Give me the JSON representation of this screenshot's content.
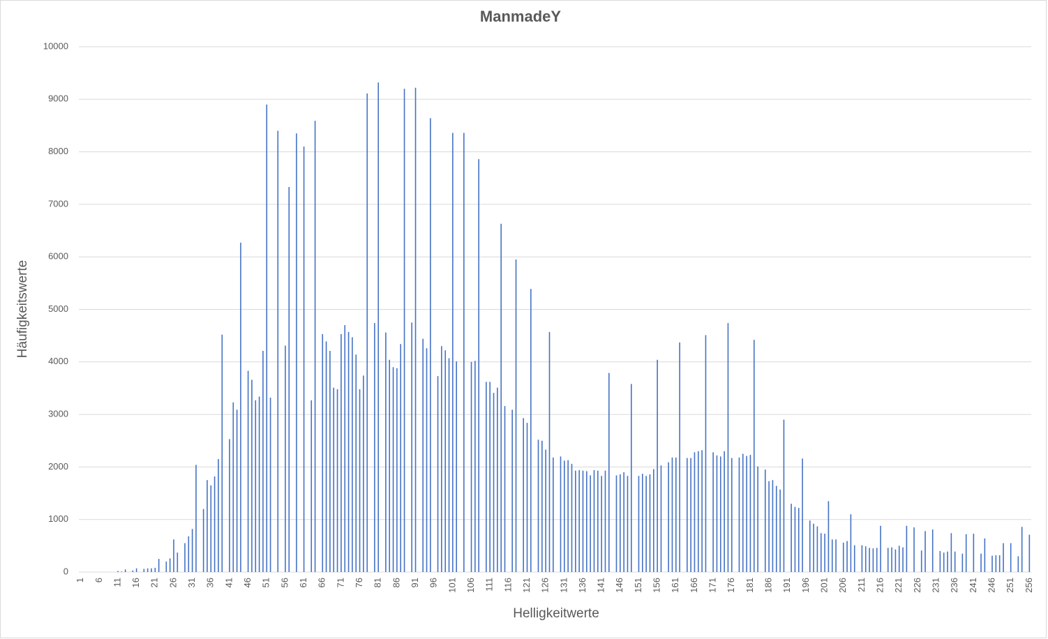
{
  "chart_data": {
    "type": "bar",
    "title": "ManmadeY",
    "x_label": "Helligkeitwerte",
    "y_label": "Häufigkeitswerte",
    "color": "#4472c4",
    "grid": true,
    "ylim": [
      0,
      10000
    ],
    "yticks": [
      0,
      1000,
      2000,
      3000,
      4000,
      5000,
      6000,
      7000,
      8000,
      9000,
      10000
    ],
    "categories": [
      1,
      null,
      null,
      null,
      null,
      6,
      null,
      null,
      null,
      null,
      11,
      null,
      null,
      null,
      null,
      16,
      null,
      null,
      null,
      null,
      21,
      null,
      null,
      null,
      null,
      26,
      null,
      null,
      null,
      null,
      31,
      null,
      null,
      null,
      null,
      36,
      null,
      null,
      null,
      null,
      41,
      null,
      null,
      null,
      null,
      46,
      null,
      null,
      null,
      null,
      51,
      null,
      null,
      null,
      null,
      56,
      null,
      null,
      null,
      null,
      61,
      null,
      null,
      null,
      null,
      66,
      null,
      null,
      null,
      null,
      71,
      null,
      null,
      null,
      null,
      76,
      null,
      null,
      null,
      null,
      81,
      null,
      null,
      null,
      null,
      86,
      null,
      null,
      null,
      null,
      91,
      null,
      null,
      null,
      null,
      96,
      null,
      null,
      null,
      null,
      101,
      null,
      null,
      null,
      null,
      106,
      null,
      null,
      null,
      null,
      111,
      null,
      null,
      null,
      null,
      116,
      null,
      null,
      null,
      null,
      121,
      null,
      null,
      null,
      null,
      126,
      null,
      null,
      null,
      null,
      131,
      null,
      null,
      null,
      null,
      136,
      null,
      null,
      null,
      null,
      141,
      null,
      null,
      null,
      null,
      146,
      null,
      null,
      null,
      null,
      151,
      null,
      null,
      null,
      null,
      156,
      null,
      null,
      null,
      null,
      161,
      null,
      null,
      null,
      null,
      166,
      null,
      null,
      null,
      null,
      171,
      null,
      null,
      null,
      null,
      176,
      null,
      null,
      null,
      null,
      181,
      null,
      null,
      null,
      null,
      186,
      null,
      null,
      null,
      null,
      191,
      null,
      null,
      null,
      null,
      196,
      null,
      null,
      null,
      null,
      201,
      null,
      null,
      null,
      null,
      206,
      null,
      null,
      null,
      null,
      211,
      null,
      null,
      null,
      null,
      216,
      null,
      null,
      null,
      null,
      221,
      null,
      null,
      null,
      null,
      226,
      null,
      null,
      null,
      null,
      231,
      null,
      null,
      null,
      null,
      236,
      null,
      null,
      null,
      null,
      241,
      null,
      null,
      null,
      null,
      246,
      null,
      null,
      null,
      null,
      251,
      null,
      null,
      null,
      null,
      256
    ],
    "values": [
      0,
      0,
      0,
      0,
      0,
      0,
      0,
      0,
      0,
      0,
      20,
      10,
      50,
      0,
      30,
      70,
      0,
      60,
      70,
      70,
      80,
      250,
      0,
      200,
      260,
      620,
      370,
      0,
      550,
      680,
      820,
      2040,
      0,
      1200,
      1750,
      1650,
      1820,
      2150,
      4520,
      0,
      2530,
      3230,
      3090,
      6270,
      0,
      3830,
      3660,
      3270,
      3340,
      4210,
      8900,
      3320,
      0,
      8400,
      0,
      4310,
      7330,
      0,
      8350,
      0,
      8100,
      0,
      3270,
      8590,
      0,
      4530,
      4390,
      4210,
      3510,
      3480,
      4530,
      4700,
      4570,
      4470,
      4140,
      3480,
      3740,
      9110,
      0,
      4740,
      9320,
      0,
      4560,
      4040,
      3900,
      3880,
      4340,
      9200,
      0,
      4750,
      9220,
      0,
      4440,
      4260,
      8640,
      0,
      3730,
      4300,
      4220,
      4070,
      8360,
      4010,
      0,
      8360,
      0,
      4000,
      4020,
      7860,
      0,
      3620,
      3620,
      3410,
      3510,
      6630,
      3160,
      0,
      3090,
      5950,
      0,
      2930,
      2840,
      5390,
      0,
      2520,
      2500,
      2330,
      4570,
      2180,
      0,
      2200,
      2120,
      2130,
      2060,
      1930,
      1940,
      1930,
      1920,
      1840,
      1940,
      1930,
      1830,
      1930,
      3790,
      0,
      1840,
      1860,
      1900,
      1830,
      3580,
      0,
      1830,
      1870,
      1830,
      1860,
      1960,
      4040,
      2030,
      0,
      2090,
      2180,
      2180,
      4370,
      0,
      2170,
      2170,
      2280,
      2300,
      2320,
      4510,
      0,
      2280,
      2220,
      2200,
      2300,
      4740,
      2170,
      0,
      2180,
      2250,
      2210,
      2230,
      4420,
      2010,
      0,
      1950,
      1730,
      1750,
      1640,
      1570,
      2900,
      0,
      1300,
      1240,
      1220,
      2160,
      0,
      980,
      920,
      870,
      740,
      730,
      1350,
      620,
      620,
      0,
      560,
      590,
      1100,
      510,
      0,
      510,
      490,
      460,
      450,
      460,
      880,
      0,
      460,
      470,
      430,
      500,
      470,
      880,
      0,
      850,
      0,
      410,
      780,
      0,
      810,
      0,
      400,
      370,
      390,
      740,
      390,
      0,
      350,
      720,
      0,
      730,
      0,
      350,
      640,
      0,
      310,
      320,
      320,
      550,
      0,
      550,
      0,
      300,
      860,
      0,
      710
    ]
  }
}
